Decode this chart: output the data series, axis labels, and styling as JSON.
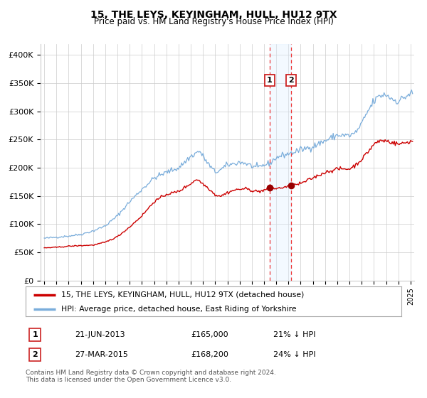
{
  "title": "15, THE LEYS, KEYINGHAM, HULL, HU12 9TX",
  "subtitle": "Price paid vs. HM Land Registry's House Price Index (HPI)",
  "footer": "Contains HM Land Registry data © Crown copyright and database right 2024.\nThis data is licensed under the Open Government Licence v3.0.",
  "legend_line1": "15, THE LEYS, KEYINGHAM, HULL, HU12 9TX (detached house)",
  "legend_line2": "HPI: Average price, detached house, East Riding of Yorkshire",
  "transaction1_label": "1",
  "transaction1_date": "21-JUN-2013",
  "transaction1_price": "£165,000",
  "transaction1_hpi": "21% ↓ HPI",
  "transaction2_label": "2",
  "transaction2_date": "27-MAR-2015",
  "transaction2_price": "£168,200",
  "transaction2_hpi": "24% ↓ HPI",
  "red_line_color": "#cc0000",
  "blue_line_color": "#7aaddb",
  "marker_color": "#990000",
  "vline_color": "#ee3333",
  "vspan_color": "#ddeeff",
  "grid_color": "#cccccc",
  "bg_color": "#ffffff",
  "ylim_min": 0,
  "ylim_max": 420000,
  "yticks": [
    0,
    50000,
    100000,
    150000,
    200000,
    250000,
    300000,
    350000,
    400000
  ],
  "ytick_labels": [
    "£0",
    "£50K",
    "£100K",
    "£150K",
    "£200K",
    "£250K",
    "£300K",
    "£350K",
    "£400K"
  ],
  "transaction1_year": 2013.47,
  "transaction2_year": 2015.23,
  "hpi_waypoints": {
    "1995.0": 75000,
    "1996.0": 77000,
    "1997.0": 79000,
    "1998.0": 82000,
    "1999.0": 88000,
    "2000.0": 97000,
    "2001.0": 115000,
    "2002.0": 140000,
    "2003.0": 162000,
    "2004.0": 182000,
    "2005.0": 192000,
    "2006.0": 200000,
    "2007.0": 220000,
    "2007.7": 230000,
    "2008.5": 205000,
    "2009.0": 192000,
    "2009.5": 197000,
    "2010.0": 205000,
    "2010.5": 207000,
    "2011.0": 210000,
    "2011.5": 208000,
    "2012.0": 203000,
    "2012.5": 200000,
    "2013.0": 205000,
    "2013.47": 208000,
    "2014.0": 218000,
    "2014.5": 222000,
    "2015.0": 225000,
    "2015.23": 226000,
    "2016.0": 232000,
    "2017.0": 238000,
    "2018.0": 248000,
    "2019.0": 258000,
    "2020.0": 257000,
    "2020.5": 262000,
    "2021.0": 278000,
    "2021.5": 300000,
    "2022.0": 318000,
    "2022.5": 328000,
    "2023.0": 330000,
    "2023.5": 322000,
    "2024.0": 318000,
    "2024.5": 325000,
    "2025.0": 332000
  },
  "prop_waypoints": {
    "1995.0": 58000,
    "1996.0": 59000,
    "1997.0": 61000,
    "1998.0": 62000,
    "1999.0": 63000,
    "2000.0": 68000,
    "2001.0": 78000,
    "2002.0": 95000,
    "2003.0": 115000,
    "2004.0": 140000,
    "2005.0": 153000,
    "2006.0": 158000,
    "2007.0": 172000,
    "2007.5": 180000,
    "2008.5": 163000,
    "2009.0": 152000,
    "2009.5": 150000,
    "2010.0": 156000,
    "2010.5": 160000,
    "2011.0": 162000,
    "2011.5": 163000,
    "2012.0": 160000,
    "2012.5": 158000,
    "2013.0": 160000,
    "2013.47": 165000,
    "2014.0": 163000,
    "2014.5": 165000,
    "2015.0": 167000,
    "2015.23": 168200,
    "2016.0": 172000,
    "2017.0": 182000,
    "2018.0": 192000,
    "2019.0": 198000,
    "2020.0": 198000,
    "2020.5": 205000,
    "2021.0": 215000,
    "2021.5": 228000,
    "2022.0": 242000,
    "2022.5": 248000,
    "2023.0": 248000,
    "2023.5": 245000,
    "2024.0": 242000,
    "2024.5": 244000,
    "2025.0": 247000
  }
}
